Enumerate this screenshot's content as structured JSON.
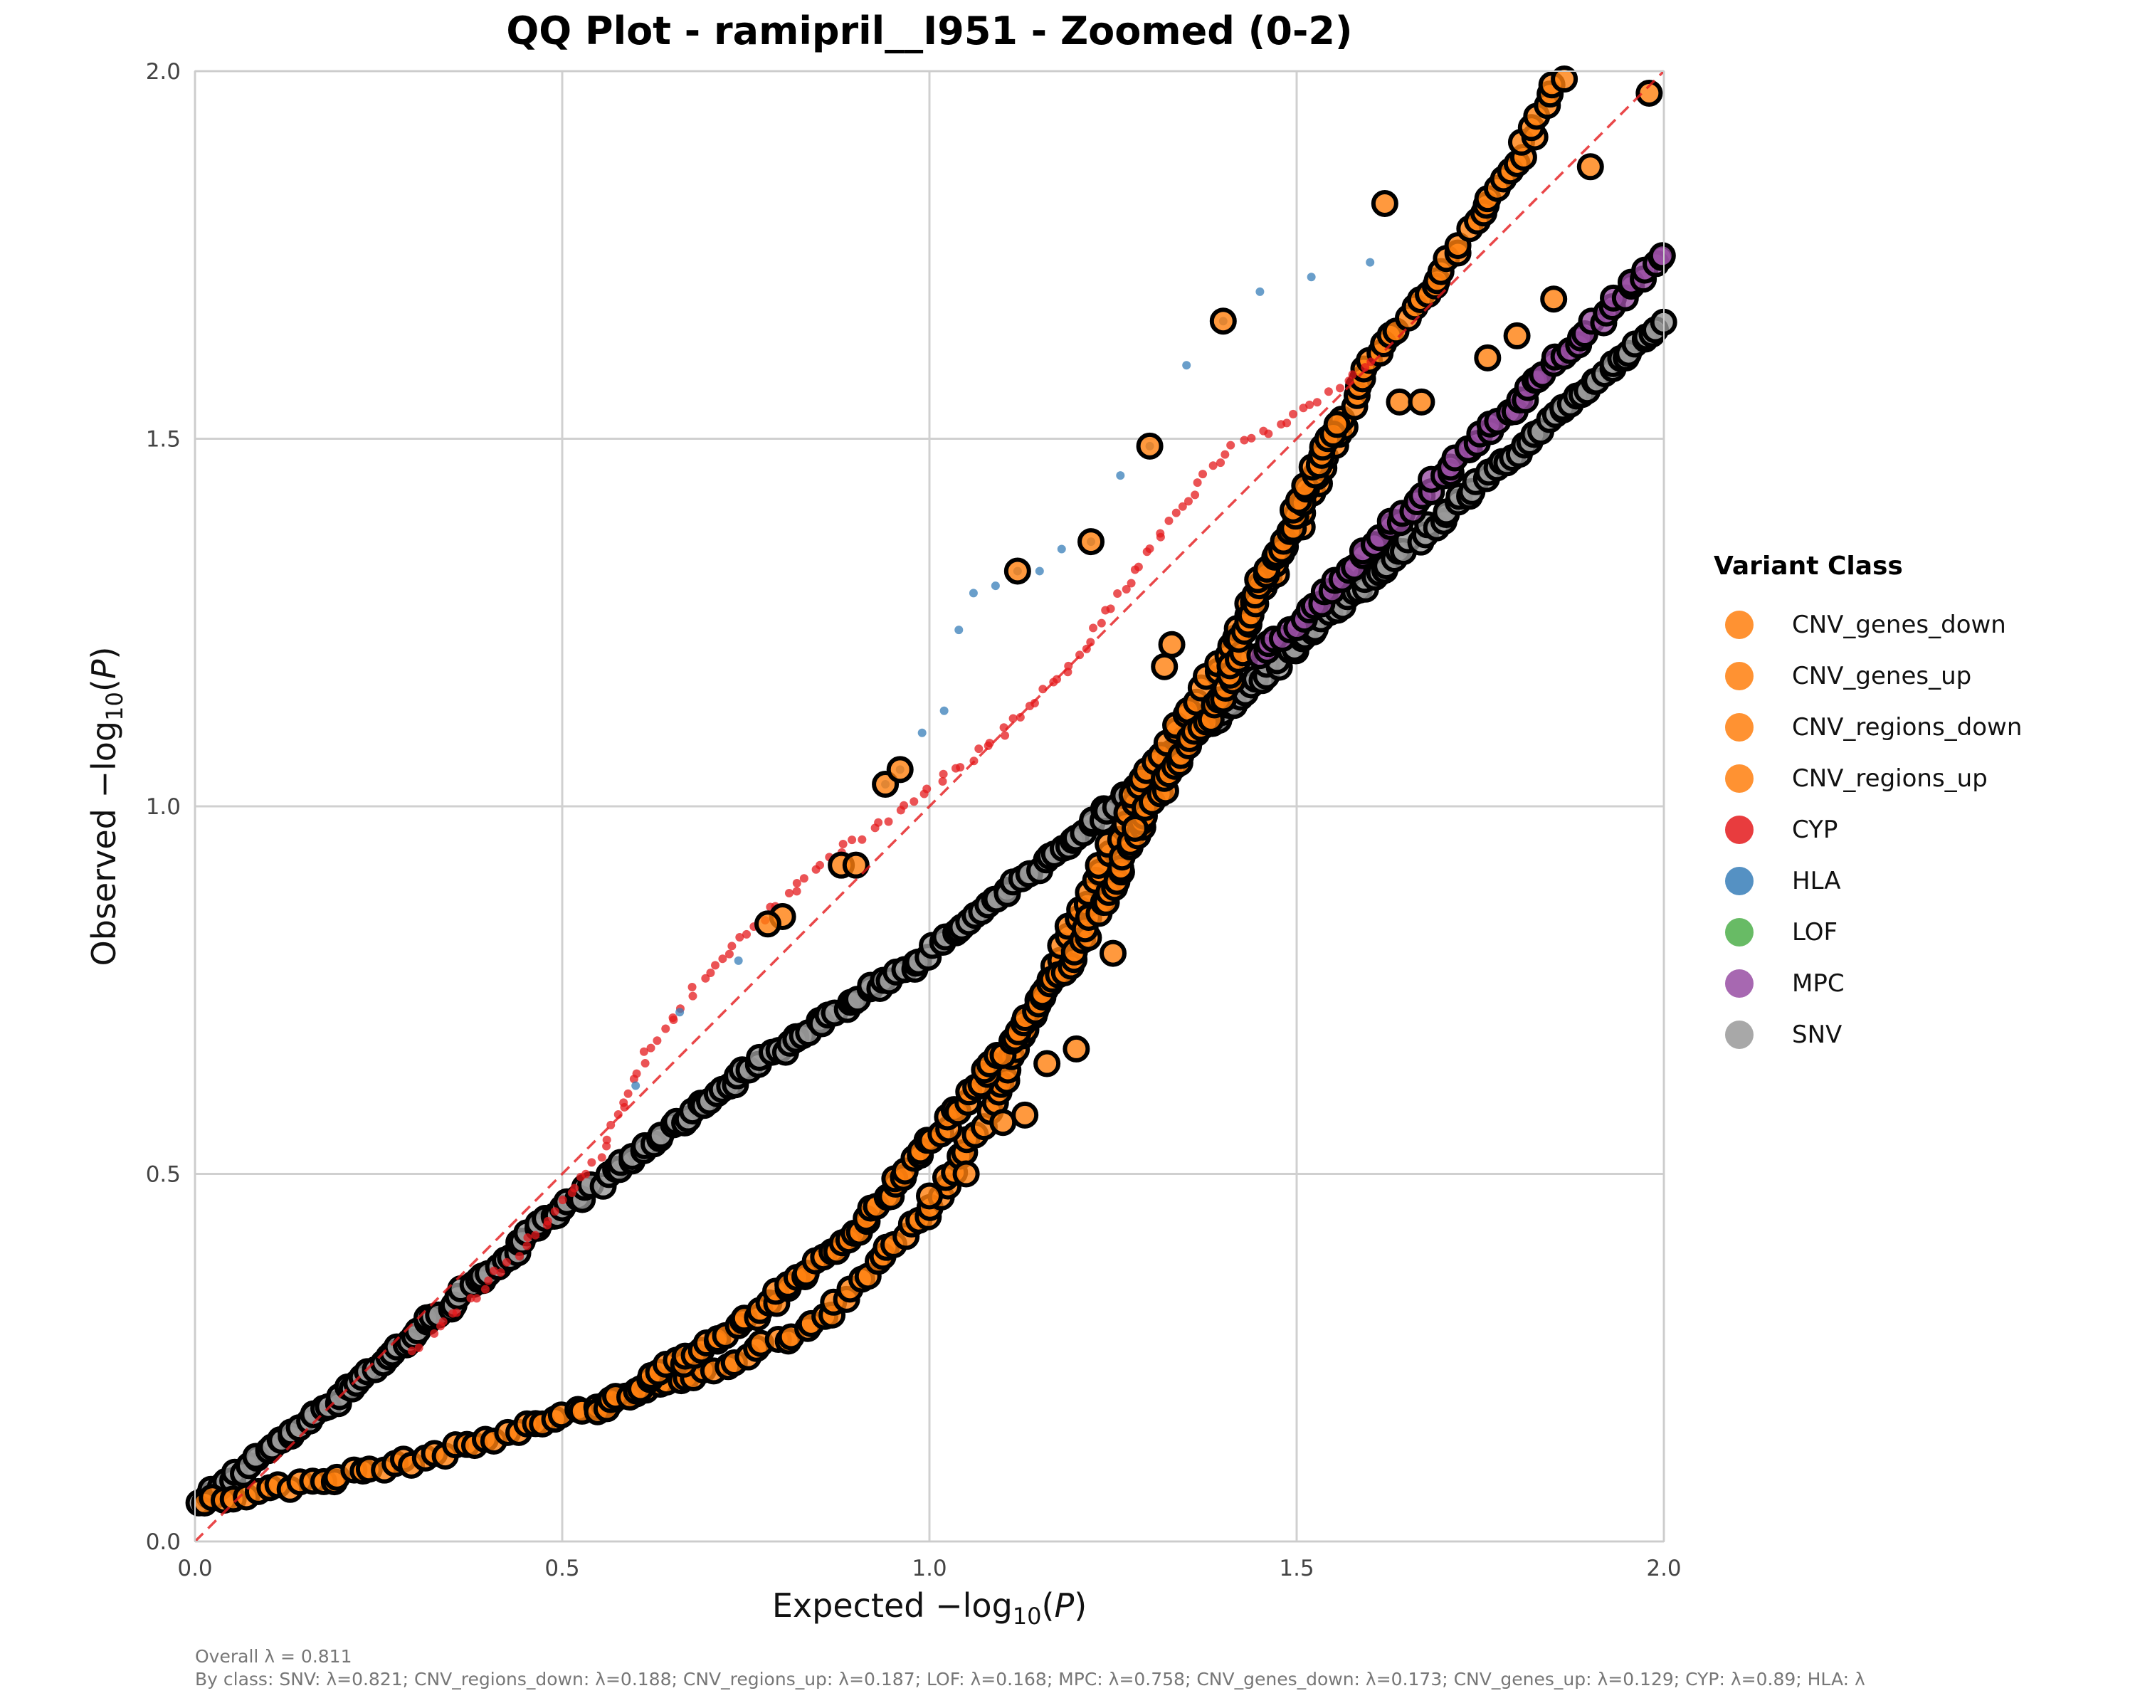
{
  "chart_data": {
    "type": "scatter",
    "title": "QQ Plot - ramipril__I951 - Zoomed (0-2)",
    "xlabel": "Expected -log10(P)",
    "ylabel": "Observed -log10(P)",
    "xlim": [
      0,
      2
    ],
    "ylim": [
      0,
      2
    ],
    "xticks": [
      "0.0",
      "0.5",
      "1.0",
      "1.5",
      "2.0"
    ],
    "yticks": [
      "0.0",
      "0.5",
      "1.0",
      "1.5",
      "2.0"
    ],
    "grid": true,
    "legend_position": "right",
    "legend_title": "Variant Class",
    "reference_line": {
      "type": "y=x",
      "color": "#e41a1c",
      "style": "dashed"
    },
    "classes": [
      {
        "name": "CNV_genes_down",
        "color": "#ff7f0e"
      },
      {
        "name": "CNV_genes_up",
        "color": "#ff7f0e"
      },
      {
        "name": "CNV_regions_down",
        "color": "#ff7f0e"
      },
      {
        "name": "CNV_regions_up",
        "color": "#ff7f0e"
      },
      {
        "name": "CYP",
        "color": "#e41a1c"
      },
      {
        "name": "HLA",
        "color": "#377eb8"
      },
      {
        "name": "LOF",
        "color": "#4daf4a"
      },
      {
        "name": "MPC",
        "color": "#984ea3"
      },
      {
        "name": "SNV",
        "color": "#999999"
      }
    ],
    "series": [
      {
        "name": "SNV",
        "color": "#999999",
        "ring": true,
        "n": 260,
        "points": [
          [
            0,
            0.05
          ],
          [
            0.2,
            0.2
          ],
          [
            0.5,
            0.45
          ],
          [
            0.75,
            0.64
          ],
          [
            1.0,
            0.8
          ],
          [
            1.25,
            1.0
          ],
          [
            1.5,
            1.22
          ],
          [
            1.75,
            1.44
          ],
          [
            2.0,
            1.66
          ]
        ]
      },
      {
        "name": "CNV_regions_down",
        "color": "#ff7f0e",
        "ring": true,
        "n": 200,
        "points": [
          [
            0,
            0.05
          ],
          [
            0.3,
            0.11
          ],
          [
            0.5,
            0.17
          ],
          [
            0.7,
            0.23
          ],
          [
            0.85,
            0.3
          ],
          [
            1.0,
            0.45
          ],
          [
            1.1,
            0.62
          ],
          [
            1.2,
            0.85
          ],
          [
            1.3,
            1.05
          ],
          [
            1.4,
            1.2
          ],
          [
            1.5,
            1.38
          ],
          [
            1.6,
            1.6
          ],
          [
            1.7,
            1.73
          ],
          [
            1.8,
            1.88
          ],
          [
            1.86,
            1.99
          ]
        ]
      },
      {
        "name": "CNV_regions_up",
        "color": "#ff7f0e",
        "ring": true,
        "n": 160,
        "points": [
          [
            0.55,
            0.18
          ],
          [
            0.75,
            0.3
          ],
          [
            0.9,
            0.42
          ],
          [
            1.05,
            0.6
          ],
          [
            1.2,
            0.8
          ],
          [
            1.3,
            1.0
          ],
          [
            1.4,
            1.15
          ],
          [
            1.45,
            1.3
          ],
          [
            1.5,
            1.4
          ],
          [
            1.55,
            1.52
          ]
        ]
      },
      {
        "name": "MPC",
        "color": "#984ea3",
        "ring": true,
        "n": 70,
        "points": [
          [
            1.45,
            1.2
          ],
          [
            1.55,
            1.3
          ],
          [
            1.65,
            1.4
          ],
          [
            1.75,
            1.5
          ],
          [
            1.85,
            1.6
          ],
          [
            1.95,
            1.7
          ],
          [
            2.0,
            1.75
          ]
        ]
      },
      {
        "name": "CYP",
        "color": "#e41a1c",
        "ring": false,
        "n": 140,
        "points": [
          [
            0.3,
            0.26
          ],
          [
            0.45,
            0.4
          ],
          [
            0.55,
            0.52
          ],
          [
            0.62,
            0.67
          ],
          [
            0.72,
            0.8
          ],
          [
            0.85,
            0.92
          ],
          [
            1.0,
            1.02
          ],
          [
            1.1,
            1.1
          ],
          [
            1.2,
            1.2
          ],
          [
            1.3,
            1.35
          ],
          [
            1.4,
            1.48
          ],
          [
            1.5,
            1.53
          ],
          [
            1.6,
            1.6
          ]
        ]
      },
      {
        "name": "HLA",
        "color": "#377eb8",
        "ring": false,
        "n": 0,
        "scatter": [
          [
            0.94,
            1.03
          ],
          [
            0.96,
            1.05
          ],
          [
            0.99,
            1.1
          ],
          [
            1.02,
            1.13
          ],
          [
            1.04,
            1.24
          ],
          [
            1.06,
            1.29
          ],
          [
            1.09,
            1.3
          ],
          [
            1.12,
            1.32
          ],
          [
            1.15,
            1.32
          ],
          [
            1.18,
            1.35
          ],
          [
            1.22,
            1.36
          ],
          [
            1.26,
            1.45
          ],
          [
            1.3,
            1.49
          ],
          [
            1.35,
            1.6
          ],
          [
            1.4,
            1.66
          ],
          [
            1.45,
            1.7
          ],
          [
            1.52,
            1.72
          ],
          [
            1.6,
            1.74
          ],
          [
            0.74,
            0.79
          ],
          [
            0.66,
            0.72
          ],
          [
            0.6,
            0.62
          ]
        ]
      },
      {
        "name": "Top hits",
        "color": "#ff7f0e",
        "ring": true,
        "n": 0,
        "scatter": [
          [
            1.12,
            1.32
          ],
          [
            1.22,
            1.36
          ],
          [
            1.3,
            1.49
          ],
          [
            1.4,
            1.66
          ],
          [
            1.62,
            1.82
          ],
          [
            0.94,
            1.03
          ],
          [
            0.96,
            1.05
          ],
          [
            0.88,
            0.92
          ],
          [
            0.9,
            0.92
          ],
          [
            0.8,
            0.85
          ],
          [
            0.78,
            0.84
          ],
          [
            1.85,
            1.69
          ],
          [
            1.9,
            1.87
          ],
          [
            1.98,
            1.97
          ],
          [
            1.8,
            1.64
          ],
          [
            1.76,
            1.61
          ],
          [
            1.64,
            1.55
          ],
          [
            1.67,
            1.55
          ],
          [
            1.33,
            1.22
          ],
          [
            1.1,
            0.57
          ],
          [
            1.13,
            0.58
          ],
          [
            1.16,
            0.65
          ],
          [
            1.2,
            0.67
          ],
          [
            1.25,
            0.8
          ],
          [
            1.28,
            0.97
          ],
          [
            1.32,
            1.19
          ],
          [
            1.0,
            0.47
          ],
          [
            1.05,
            0.5
          ]
        ]
      }
    ]
  },
  "legend": {
    "title": "Variant Class",
    "items": [
      "CNV_genes_down",
      "CNV_genes_up",
      "CNV_regions_down",
      "CNV_regions_up",
      "CYP",
      "HLA",
      "LOF",
      "MPC",
      "SNV"
    ]
  },
  "footer": {
    "overall": "Overall λ = 0.811",
    "by_class": "By class: SNV: λ=0.821; CNV_regions_down: λ=0.188; CNV_regions_up: λ=0.187; LOF: λ=0.168; MPC: λ=0.758; CNV_genes_down: λ=0.173; CNV_genes_up: λ=0.129; CYP: λ=0.89; HLA: λ"
  }
}
